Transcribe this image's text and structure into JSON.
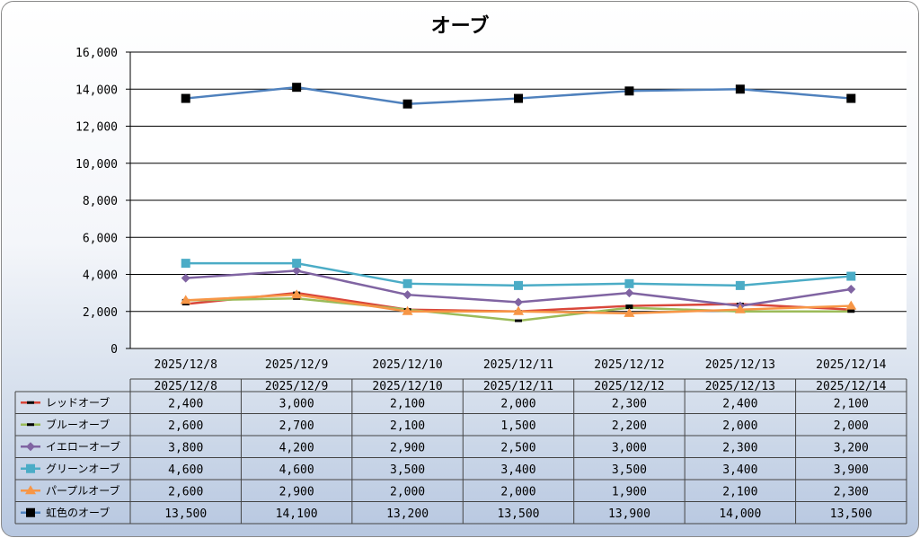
{
  "chart_data": {
    "type": "line",
    "title": "オーブ",
    "categories": [
      "2025/12/8",
      "2025/12/9",
      "2025/12/10",
      "2025/12/11",
      "2025/12/12",
      "2025/12/13",
      "2025/12/14"
    ],
    "ylim": [
      0,
      16000
    ],
    "yticks": [
      0,
      2000,
      4000,
      6000,
      8000,
      10000,
      12000,
      14000,
      16000
    ],
    "ytick_labels": [
      "0",
      "2,000",
      "4,000",
      "6,000",
      "8,000",
      "10,000",
      "12,000",
      "14,000",
      "16,000"
    ],
    "grid": true,
    "legend_placement": "data-table",
    "series": [
      {
        "name": "レッドオーブ",
        "color": "#d9463a",
        "marker": "dash",
        "values": [
          2400,
          3000,
          2100,
          2000,
          2300,
          2400,
          2100
        ],
        "labels": [
          "2,400",
          "3,000",
          "2,100",
          "2,000",
          "2,300",
          "2,400",
          "2,100"
        ]
      },
      {
        "name": "ブルーオーブ",
        "color": "#9bbb59",
        "marker": "dash",
        "values": [
          2600,
          2700,
          2100,
          1500,
          2200,
          2000,
          2000
        ],
        "labels": [
          "2,600",
          "2,700",
          "2,100",
          "1,500",
          "2,200",
          "2,000",
          "2,000"
        ]
      },
      {
        "name": "イエローオーブ",
        "color": "#8064a2",
        "marker": "diamond",
        "values": [
          3800,
          4200,
          2900,
          2500,
          3000,
          2300,
          3200
        ],
        "labels": [
          "3,800",
          "4,200",
          "2,900",
          "2,500",
          "3,000",
          "2,300",
          "3,200"
        ]
      },
      {
        "name": "グリーンオーブ",
        "color": "#4bacc6",
        "marker": "square",
        "values": [
          4600,
          4600,
          3500,
          3400,
          3500,
          3400,
          3900
        ],
        "labels": [
          "4,600",
          "4,600",
          "3,500",
          "3,400",
          "3,500",
          "3,400",
          "3,900"
        ]
      },
      {
        "name": "パープルオーブ",
        "color": "#f79646",
        "marker": "triangle",
        "values": [
          2600,
          2900,
          2000,
          2000,
          1900,
          2100,
          2300
        ],
        "labels": [
          "2,600",
          "2,900",
          "2,000",
          "2,000",
          "1,900",
          "2,100",
          "2,300"
        ]
      },
      {
        "name": "虹色のオーブ",
        "color": "#4f81bd",
        "marker": "square-black",
        "values": [
          13500,
          14100,
          13200,
          13500,
          13900,
          14000,
          13500
        ],
        "labels": [
          "13,500",
          "14,100",
          "13,200",
          "13,500",
          "13,900",
          "14,000",
          "13,500"
        ]
      }
    ]
  }
}
